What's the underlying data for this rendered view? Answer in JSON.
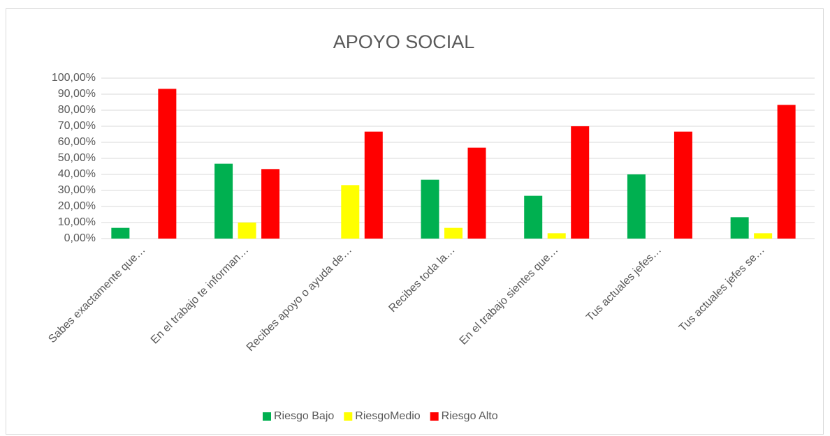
{
  "chart_data": {
    "type": "bar",
    "title": "APOYO SOCIAL",
    "categories": [
      "Sabes exactamente que…",
      "En el trabajo  te informan…",
      "Recibes apoyo o ayuda de…",
      "Recibes toda la…",
      "En el trabajo sientes que…",
      "Tus actuales jefes…",
      "Tus actuales jefes se…"
    ],
    "series": [
      {
        "name": "Riesgo Bajo",
        "color": "#00b050",
        "values": [
          6.67,
          46.67,
          0,
          36.67,
          26.67,
          40,
          13.33
        ]
      },
      {
        "name": "RiesgoMedio",
        "color": "#ffff00",
        "values": [
          0,
          10,
          33.33,
          6.67,
          3.33,
          0,
          3.33
        ]
      },
      {
        "name": "Riesgo Alto",
        "color": "#ff0000",
        "values": [
          93.33,
          43.33,
          66.67,
          56.67,
          70,
          66.67,
          83.33
        ]
      }
    ],
    "ylim": [
      0,
      100
    ],
    "yticks": [
      {
        "value": 0,
        "label": "0,00%"
      },
      {
        "value": 10,
        "label": "10,00%"
      },
      {
        "value": 20,
        "label": "20,00%"
      },
      {
        "value": 30,
        "label": "30,00%"
      },
      {
        "value": 40,
        "label": "40,00%"
      },
      {
        "value": 50,
        "label": "50,00%"
      },
      {
        "value": 60,
        "label": "60,00%"
      },
      {
        "value": 70,
        "label": "70,00%"
      },
      {
        "value": 80,
        "label": "80,00%"
      },
      {
        "value": 90,
        "label": "90,00%"
      },
      {
        "value": 100,
        "label": "100,00%"
      }
    ],
    "grid": true,
    "legend": "bottom"
  }
}
